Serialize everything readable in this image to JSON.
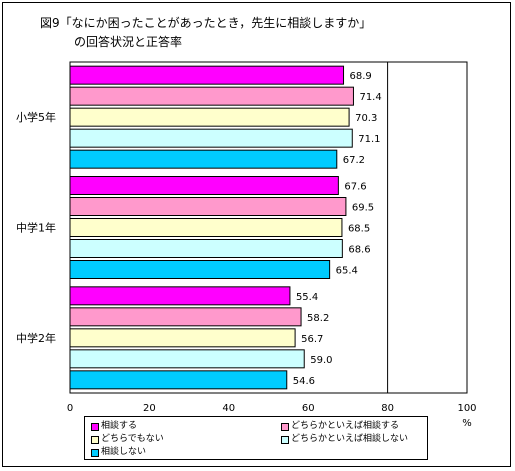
{
  "title": {
    "line1": "図9「なにか困ったことがあったとき，先生に相談しますか」",
    "line2": "の回答状況と正答率"
  },
  "colors": {
    "series": [
      "#ff00ff",
      "#ff99cc",
      "#ffffcc",
      "#ccffff",
      "#00ccff"
    ],
    "bar_border": "#000000"
  },
  "chart_data": {
    "type": "bar",
    "orientation": "horizontal",
    "categories": [
      "小学5年",
      "中学1年",
      "中学2年"
    ],
    "series": [
      {
        "name": "相談する",
        "values": [
          68.9,
          67.6,
          55.4
        ]
      },
      {
        "name": "どちらかといえば相談する",
        "values": [
          71.4,
          69.5,
          58.2
        ]
      },
      {
        "name": "どちらでもない",
        "values": [
          70.3,
          68.5,
          56.7
        ]
      },
      {
        "name": "どちらかといえば相談しない",
        "values": [
          71.1,
          68.6,
          59.0
        ]
      },
      {
        "name": "相談しない",
        "values": [
          67.2,
          65.4,
          54.6
        ]
      }
    ],
    "value_labels": [
      [
        "68.9",
        "67.6",
        "55.4"
      ],
      [
        "71.4",
        "69.5",
        "58.2"
      ],
      [
        "70.3",
        "68.5",
        "56.7"
      ],
      [
        "71.1",
        "68.6",
        "59.0"
      ],
      [
        "67.2",
        "65.4",
        "54.6"
      ]
    ],
    "xlim": [
      0,
      100
    ],
    "xticks": [
      "0",
      "20",
      "40",
      "60",
      "80",
      "100"
    ],
    "xunit": "%",
    "grid": "major vertical at 80",
    "legend_position": "bottom"
  }
}
